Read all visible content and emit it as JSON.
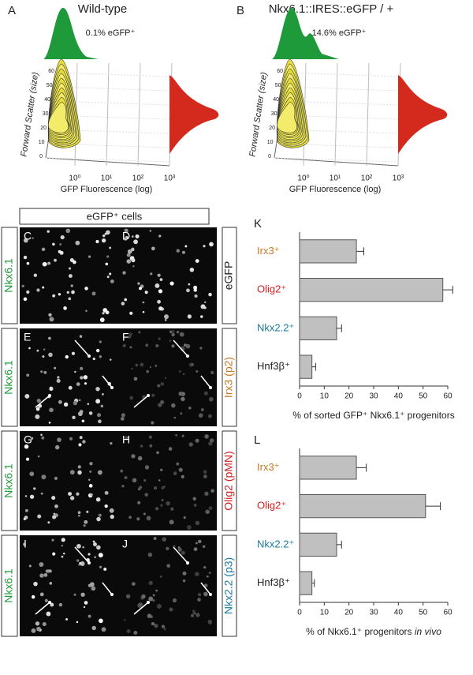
{
  "flow_panels": [
    {
      "letter": "A",
      "title": "Wild-type",
      "percent": "0.1% eGFP⁺",
      "ylabel": "Forward Scatter (size)",
      "xlabel": "GFP Fluorescence (log)",
      "xticks": [
        "10⁰",
        "10¹",
        "10²",
        "10³"
      ],
      "yticks": [
        0,
        10,
        20,
        30,
        40,
        50,
        60
      ]
    },
    {
      "letter": "B",
      "title": "Nkx6.1::IRES::eGFP / +",
      "percent": "14.6% eGFP⁺",
      "ylabel": "Forward Scatter (size)",
      "xlabel": "GFP Fluorescence (log)",
      "xticks": [
        "10⁰",
        "10¹",
        "10²",
        "10³"
      ],
      "yticks": [
        0,
        10,
        20,
        30,
        40,
        50,
        60
      ]
    }
  ],
  "images": {
    "header": "eGFP⁺ cells",
    "rows": [
      {
        "left": "Nkx6.1",
        "letters": [
          "C",
          "D"
        ],
        "right": "eGFP",
        "right_color": "#222222"
      },
      {
        "left": "Nkx6.1",
        "letters": [
          "E",
          "F"
        ],
        "right": "Irx3 (p2)",
        "right_color": "#c87820"
      },
      {
        "left": "Nkx6.1",
        "letters": [
          "G",
          "H"
        ],
        "right": "Olig2 (pMN)",
        "right_color": "#d42020"
      },
      {
        "left": "Nkx6.1",
        "letters": [
          "I",
          "J"
        ],
        "right": "Nkx2.2 (p3)",
        "right_color": "#1a7aa0"
      }
    ]
  },
  "chart_data": [
    {
      "type": "bar",
      "letter": "K",
      "categories": [
        "Irx3⁺",
        "Olig2⁺",
        "Nkx2.2⁺",
        "Hnf3β⁺"
      ],
      "category_colors": [
        "#c87820",
        "#d42020",
        "#1a7aa0",
        "#222222"
      ],
      "values": [
        23,
        58,
        15,
        5
      ],
      "errors": [
        3,
        4,
        2,
        1.5
      ],
      "color": "#c0c0c0",
      "xlim": [
        0,
        60
      ],
      "xticks": [
        0,
        10,
        20,
        30,
        40,
        50,
        60
      ],
      "xlabel": "% of sorted GFP⁺ Nkx6.1⁺ progenitors"
    },
    {
      "type": "bar",
      "letter": "L",
      "categories": [
        "Irx3⁺",
        "Olig2⁺",
        "Nkx2.2⁺",
        "Hnf3β⁺"
      ],
      "category_colors": [
        "#c87820",
        "#d42020",
        "#1a7aa0",
        "#222222"
      ],
      "values": [
        23,
        51,
        15,
        5
      ],
      "errors": [
        4,
        6,
        2,
        1
      ],
      "color": "#c0c0c0",
      "xlim": [
        0,
        60
      ],
      "xticks": [
        0,
        10,
        20,
        30,
        40,
        50,
        60
      ],
      "xlabel": "% of Nkx6.1⁺ progenitors",
      "xlabel_italic": "in vivo"
    }
  ]
}
